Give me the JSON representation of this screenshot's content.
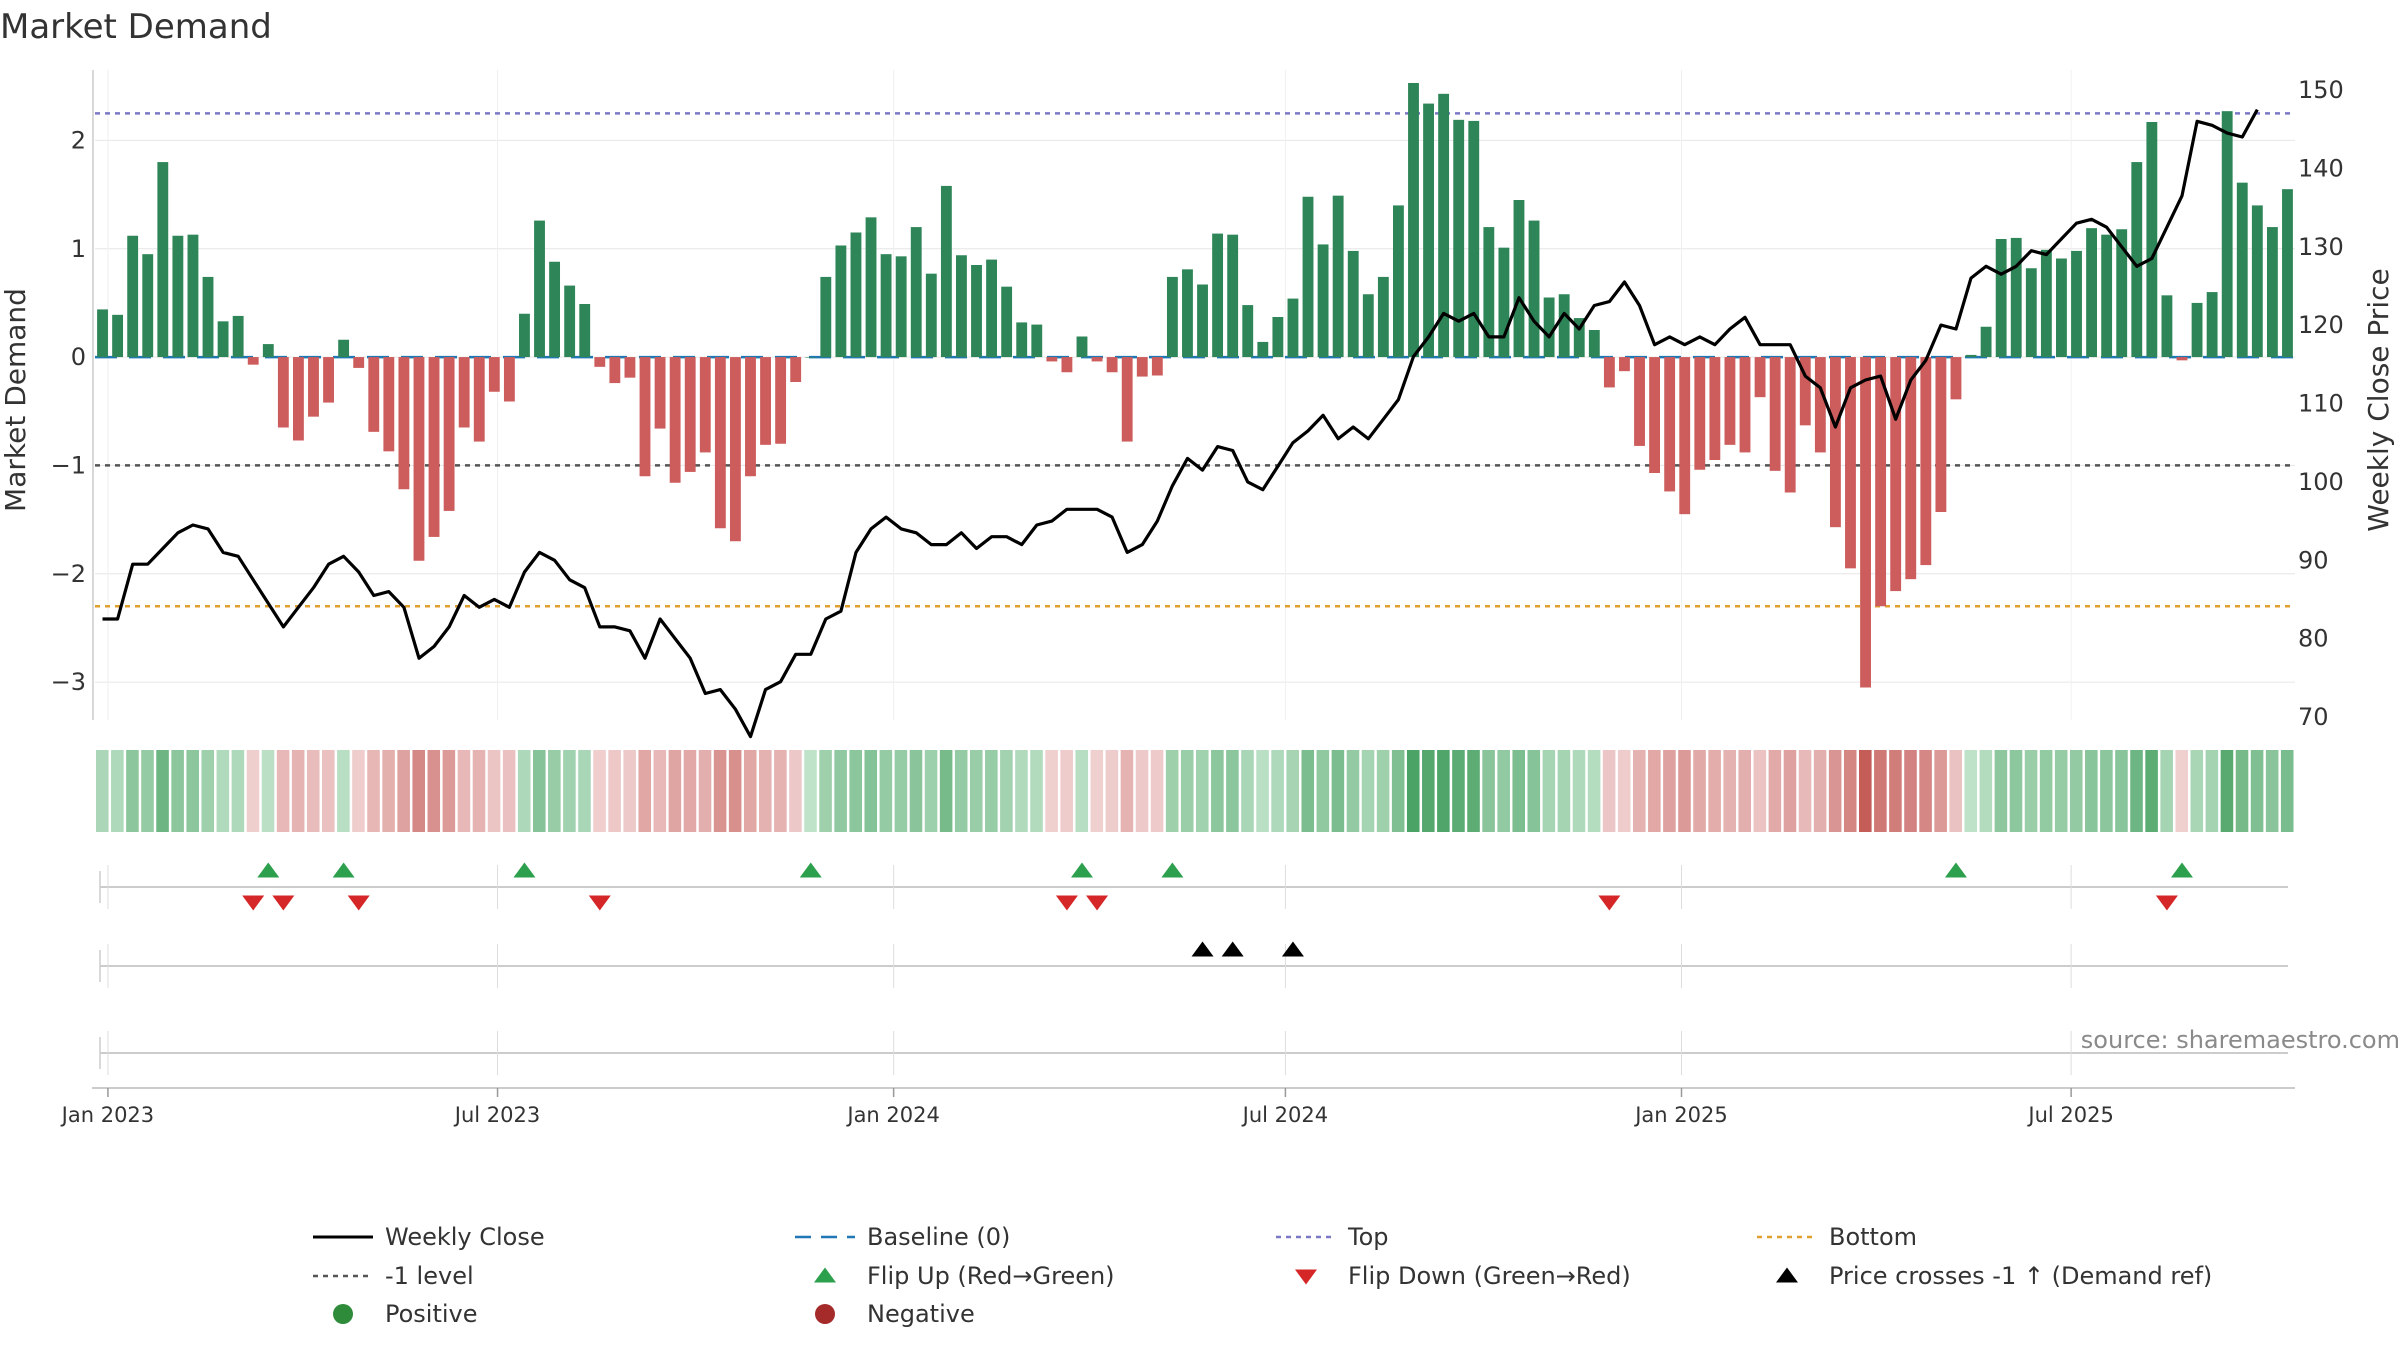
{
  "chart_data": {
    "type": "bar",
    "title": "Market Demand",
    "ylabel": "Market Demand",
    "y2label": "Weekly Close Price",
    "ylim": [
      -3.35,
      2.65
    ],
    "y2lim": [
      70,
      150
    ],
    "yticks": [
      2,
      1,
      0,
      -1,
      -2,
      -3
    ],
    "y2ticks": [
      150,
      140,
      130,
      120,
      110,
      100,
      90,
      80,
      70
    ],
    "ytick_labels": [
      "2",
      "1",
      "0",
      "−1",
      "−2",
      "−3"
    ],
    "y2tick_labels": [
      "150",
      "140",
      "130",
      "120",
      "110",
      "100",
      "90",
      "80",
      "70"
    ],
    "x_start": "2022-12-26",
    "x_labels": [
      {
        "date": "2023-01-01",
        "label": "Jan 2023"
      },
      {
        "date": "2023-07-01",
        "label": "Jul 2023"
      },
      {
        "date": "2024-01-01",
        "label": "Jan 2024"
      },
      {
        "date": "2024-07-01",
        "label": "Jul 2024"
      },
      {
        "date": "2025-01-01",
        "label": "Jan 2025"
      },
      {
        "date": "2025-07-01",
        "label": "Jul 2025"
      }
    ],
    "levels": {
      "top": 2.25,
      "bottom": -2.3,
      "minus_one": -1.0,
      "baseline": 0
    },
    "demand": [
      0.44,
      0.39,
      1.12,
      0.95,
      1.8,
      1.12,
      1.13,
      0.74,
      0.33,
      0.38,
      -0.07,
      0.12,
      -0.65,
      -0.77,
      -0.55,
      -0.42,
      0.16,
      -0.1,
      -0.69,
      -0.87,
      -1.22,
      -1.88,
      -1.66,
      -1.42,
      -0.65,
      -0.78,
      -0.32,
      -0.41,
      0.4,
      1.26,
      0.88,
      0.66,
      0.49,
      -0.09,
      -0.24,
      -0.19,
      -1.1,
      -0.66,
      -1.16,
      -1.06,
      -0.88,
      -1.58,
      -1.7,
      -1.1,
      -0.81,
      -0.8,
      -0.23,
      0.0,
      0.74,
      1.03,
      1.15,
      1.29,
      0.95,
      0.93,
      1.2,
      0.77,
      1.58,
      0.94,
      0.85,
      0.9,
      0.65,
      0.32,
      0.3,
      -0.04,
      -0.14,
      0.19,
      -0.04,
      -0.14,
      -0.78,
      -0.18,
      -0.17,
      0.74,
      0.81,
      0.67,
      1.14,
      1.13,
      0.48,
      0.14,
      0.37,
      0.54,
      1.48,
      1.04,
      1.49,
      0.98,
      0.58,
      0.74,
      1.4,
      2.53,
      2.34,
      2.43,
      2.19,
      2.18,
      1.2,
      1.01,
      1.45,
      1.26,
      0.55,
      0.58,
      0.36,
      0.25,
      -0.28,
      -0.13,
      -0.82,
      -1.07,
      -1.24,
      -1.45,
      -1.04,
      -0.95,
      -0.81,
      -0.88,
      -0.37,
      -1.05,
      -1.25,
      -0.63,
      -0.88,
      -1.57,
      -1.95,
      -3.05,
      -2.3,
      -2.16,
      -2.05,
      -1.92,
      -1.43,
      -0.39,
      0.02,
      0.28,
      1.09,
      1.1,
      0.82,
      0.99,
      0.91,
      0.98,
      1.19,
      1.13,
      1.18,
      1.8,
      2.17,
      0.57,
      -0.03,
      0.5,
      0.6,
      2.27,
      1.61,
      1.4,
      1.2,
      1.55
    ],
    "close": [
      82.5,
      82.5,
      89.5,
      89.5,
      91.5,
      93.5,
      94.5,
      94.0,
      91.0,
      90.5,
      87.5,
      84.5,
      81.5,
      84.0,
      86.5,
      89.5,
      90.5,
      88.5,
      85.5,
      86.0,
      84.0,
      77.5,
      79.0,
      81.5,
      85.5,
      84.0,
      85.0,
      84.0,
      88.5,
      91.0,
      90.0,
      87.5,
      86.5,
      81.5,
      81.5,
      81.0,
      77.5,
      82.5,
      80.0,
      77.5,
      73.0,
      73.5,
      71.0,
      67.5,
      73.5,
      74.5,
      78.0,
      78.0,
      82.5,
      83.5,
      91.0,
      94.0,
      95.5,
      94.0,
      93.5,
      92.0,
      92.0,
      93.5,
      91.5,
      93.0,
      93.0,
      92.0,
      94.5,
      95.0,
      96.5,
      96.5,
      96.5,
      95.5,
      91.0,
      92.0,
      95.0,
      99.5,
      103.0,
      101.5,
      104.5,
      104.0,
      100.0,
      99.0,
      102.0,
      105.0,
      106.5,
      108.5,
      105.5,
      107.0,
      105.5,
      108.0,
      110.5,
      116.0,
      118.5,
      121.5,
      120.5,
      121.5,
      118.5,
      118.5,
      123.5,
      120.5,
      118.5,
      121.5,
      119.5,
      122.5,
      123.0,
      125.5,
      122.5,
      117.5,
      118.5,
      117.5,
      118.5,
      117.5,
      119.5,
      121.0,
      117.5,
      117.5,
      117.5,
      113.5,
      112.0,
      107.0,
      112.0,
      113.0,
      113.5,
      108.0,
      113.0,
      115.5,
      120.0,
      119.5,
      126.0,
      127.5,
      126.5,
      127.5,
      129.5,
      129.0,
      131.0,
      133.0,
      133.5,
      132.5,
      130.0,
      127.5,
      128.5,
      132.5,
      136.5,
      146.0,
      145.5,
      144.5,
      144.0,
      147.5
    ],
    "flip_up_weeks": [
      11,
      16,
      28,
      47,
      65,
      71,
      123,
      138
    ],
    "flip_down_weeks": [
      10,
      12,
      17,
      33,
      64,
      66,
      100,
      137
    ],
    "price_cross_weeks": [
      73,
      75,
      79
    ],
    "legend": [
      {
        "label": "Weekly Close",
        "style": "solid",
        "color": "#000000"
      },
      {
        "label": "Baseline (0)",
        "style": "dash",
        "color": "#1f77b4"
      },
      {
        "label": "Top",
        "style": "dot",
        "color": "#7b78c8"
      },
      {
        "label": "Bottom",
        "style": "dot",
        "color": "#e0a030"
      },
      {
        "label": "-1 level",
        "style": "dot",
        "color": "#555555"
      },
      {
        "label": "Flip Up (Red→Green)",
        "style": "tri-up",
        "color": "#2ca04c"
      },
      {
        "label": "Flip Down (Green→Red)",
        "style": "tri-down",
        "color": "#d62728"
      },
      {
        "label": "Price crosses -1 ↑ (Demand ref)",
        "style": "tri-up",
        "color": "#000000"
      },
      {
        "label": "Positive",
        "style": "dot-marker",
        "color": "#2e8b3a"
      },
      {
        "label": "Negative",
        "style": "dot-marker",
        "color": "#a52a2a"
      }
    ],
    "source": "source: sharemaestro.com"
  },
  "colors": {
    "positive": "#2e8558",
    "negative": "#cd5c5c",
    "grid": "#e6e6e6",
    "axis": "#cccccc"
  }
}
